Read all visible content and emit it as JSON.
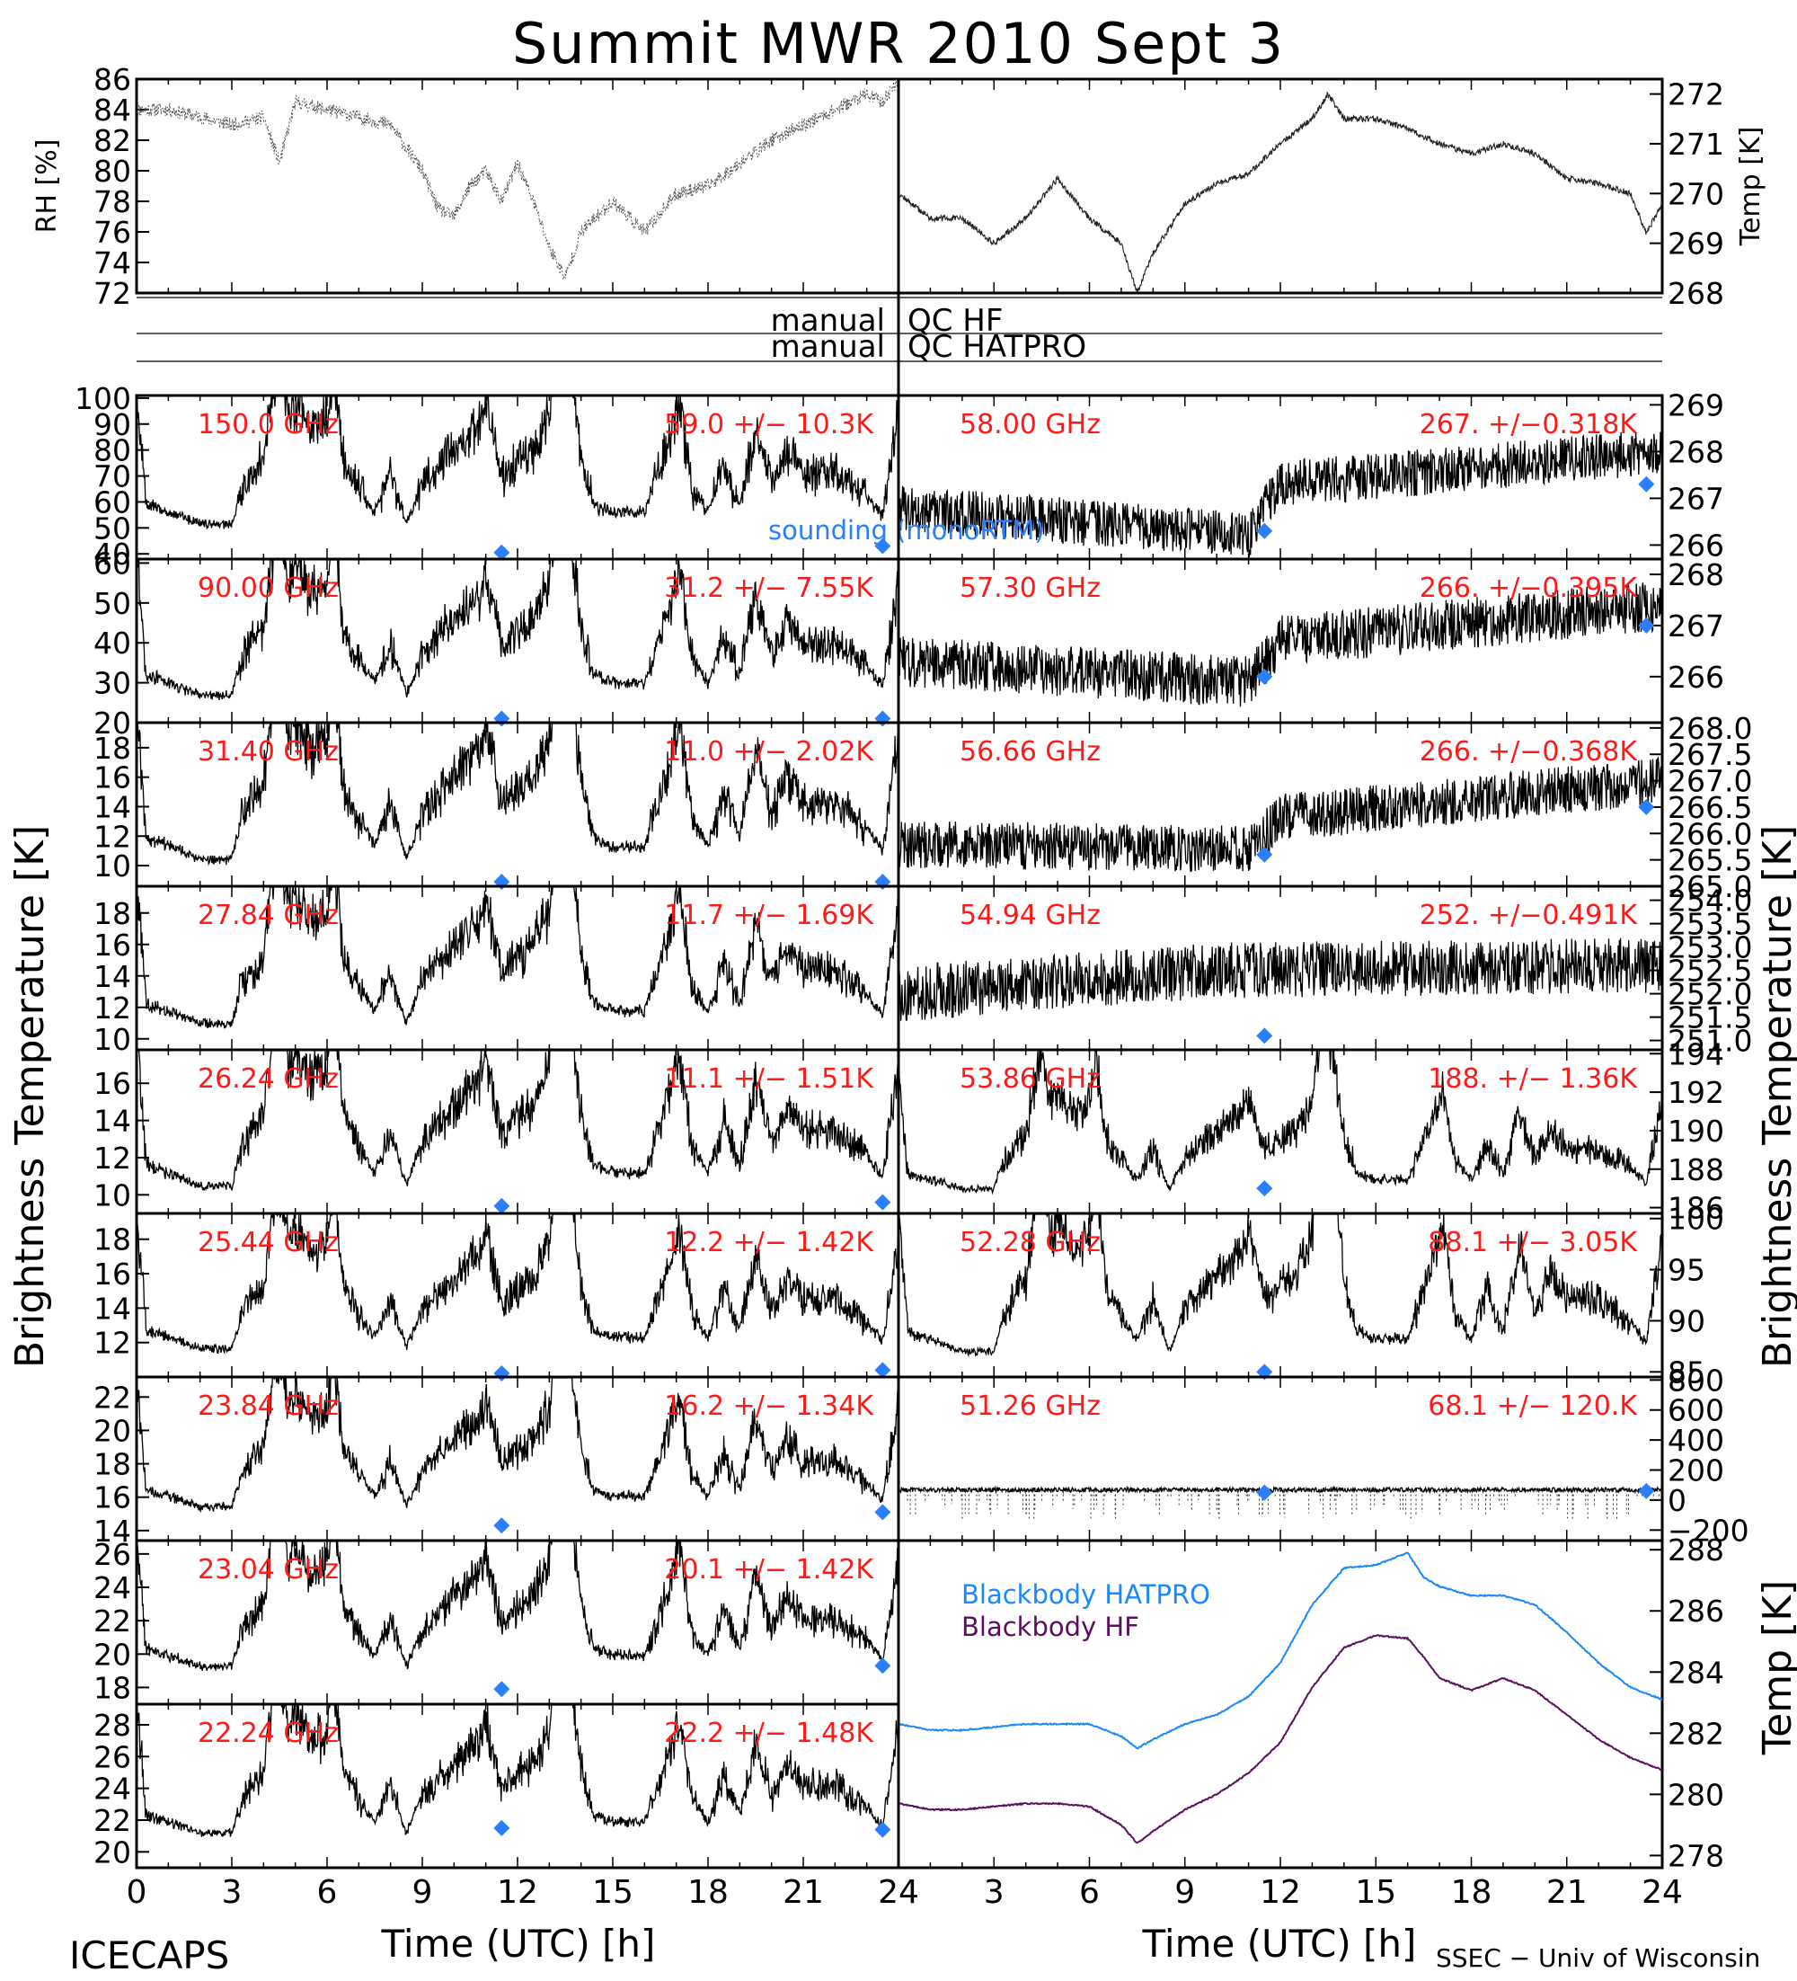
{
  "title": "Summit MWR 2010 Sept  3",
  "footer": {
    "left": "ICECAPS",
    "right": "SSEC − Univ of Wisconsin"
  },
  "xlabel": "Time (UTC) [h]",
  "x_ticks": [
    "0",
    "3",
    "6",
    "9",
    "12",
    "15",
    "18",
    "21",
    "24"
  ],
  "qc": [
    {
      "left": "manual",
      "right": "QC HF"
    },
    {
      "left": "manual",
      "right": "QC HATPRO"
    }
  ],
  "brightness_label": "Brightness Temperature [K]",
  "sounding_label": "sounding (monoRTM)",
  "colors": {
    "trace": "#000000",
    "annotation": "#ff1a1a",
    "sounding": "#2a7fff",
    "bb_hatpro": "#1a88ff",
    "bb_hf": "#5a0f5f"
  },
  "chart_data": [
    {
      "type": "scatter",
      "panel": "rh",
      "ylabel": "RH [%]",
      "ylim": [
        72,
        86
      ],
      "yticks": [
        "86",
        "84",
        "82",
        "80",
        "78",
        "76",
        "74",
        "72"
      ],
      "x": [
        0,
        1,
        2,
        3,
        4,
        4.5,
        5,
        6,
        7,
        8,
        9,
        9.5,
        10,
        10.5,
        11,
        11.5,
        12,
        12.5,
        13,
        13.5,
        14,
        14.5,
        15,
        16,
        17,
        18,
        19,
        20,
        21,
        22,
        23,
        23.5,
        24
      ],
      "y": [
        84,
        84,
        83.5,
        83,
        83.5,
        80.5,
        84.5,
        84,
        83.5,
        83,
        80,
        77.5,
        77,
        79,
        80,
        78,
        80.5,
        78,
        75,
        73,
        76,
        77,
        78,
        76,
        78.5,
        79,
        80.5,
        82,
        83,
        84,
        85,
        84.5,
        86
      ]
    },
    {
      "type": "line",
      "panel": "temp",
      "ylabel": "Temp [K]",
      "ylim": [
        268,
        272.3
      ],
      "yticks": [
        "272",
        "271",
        "270",
        "269",
        "268"
      ],
      "x": [
        0,
        1,
        2,
        3,
        4,
        5,
        6,
        7,
        7.5,
        8,
        9,
        10,
        11,
        12,
        13,
        13.5,
        14,
        15,
        16,
        17,
        18,
        19,
        20,
        21,
        22,
        23,
        23.5,
        24
      ],
      "y": [
        270,
        269.5,
        269.5,
        269,
        269.5,
        270.3,
        269.5,
        269,
        268,
        268.8,
        269.8,
        270.2,
        270.4,
        271,
        271.5,
        272,
        271.5,
        271.5,
        271.3,
        271,
        270.8,
        271,
        270.8,
        270.3,
        270.2,
        270,
        269.2,
        269.8
      ]
    },
    {
      "type": "line",
      "panel": "bt",
      "column": "left",
      "row": 0,
      "freq": "150.0 GHz",
      "stats": "59.0 +/−  10.3K",
      "ylim": [
        38,
        101
      ],
      "yticks": [
        "100",
        "90",
        "80",
        "70",
        "60",
        "50",
        "40"
      ],
      "sounding": [
        {
          "x": 11.5,
          "y": 40.5
        },
        {
          "x": 23.5,
          "y": 43
        }
      ],
      "scale": 15,
      "offset": 47,
      "noise": 4
    },
    {
      "type": "line",
      "panel": "bt",
      "column": "left",
      "row": 1,
      "freq": "90.00 GHz",
      "stats": "31.2 +/−  7.55K",
      "ylim": [
        20,
        61
      ],
      "yticks": [
        "60",
        "50",
        "40",
        "30",
        "20"
      ],
      "sounding": [
        {
          "x": 11.5,
          "y": 21
        },
        {
          "x": 23.5,
          "y": 21
        }
      ],
      "scale": 10,
      "offset": 24,
      "noise": 2.5
    },
    {
      "type": "line",
      "panel": "bt",
      "column": "left",
      "row": 2,
      "freq": "31.40 GHz",
      "stats": "11.0 +/− 2.02K",
      "ylim": [
        8.6,
        19.7
      ],
      "yticks": [
        "18",
        "16",
        "14",
        "12",
        "10"
      ],
      "sounding": [
        {
          "x": 11.5,
          "y": 8.9
        },
        {
          "x": 23.5,
          "y": 8.9
        }
      ],
      "scale": 3,
      "offset": 9.5,
      "noise": 0.7
    },
    {
      "type": "line",
      "panel": "bt",
      "column": "left",
      "row": 3,
      "freq": "27.84 GHz",
      "stats": "11.7 +/− 1.69K",
      "ylim": [
        9.3,
        19.7
      ],
      "yticks": [
        "18",
        "16",
        "14",
        "12",
        "10"
      ],
      "sounding": [],
      "scale": 2.6,
      "offset": 10.2,
      "noise": 0.6
    },
    {
      "type": "line",
      "panel": "bt",
      "column": "left",
      "row": 4,
      "freq": "26.24 GHz",
      "stats": "11.1 +/− 1.51K",
      "ylim": [
        9,
        17.8
      ],
      "yticks": [
        "16",
        "14",
        "12",
        "10"
      ],
      "sounding": [
        {
          "x": 11.5,
          "y": 9.4
        },
        {
          "x": 23.5,
          "y": 9.6
        }
      ],
      "scale": 2.3,
      "offset": 9.8,
      "noise": 0.5
    },
    {
      "type": "line",
      "panel": "bt",
      "column": "left",
      "row": 5,
      "freq": "25.44 GHz",
      "stats": "12.2 +/− 1.42K",
      "ylim": [
        10,
        19.5
      ],
      "yticks": [
        "18",
        "16",
        "14",
        "12"
      ],
      "sounding": [
        {
          "x": 11.5,
          "y": 10.1
        },
        {
          "x": 23.5,
          "y": 10.4
        }
      ],
      "scale": 2.2,
      "offset": 11,
      "noise": 0.5
    },
    {
      "type": "line",
      "panel": "bt",
      "column": "left",
      "row": 6,
      "freq": "23.84 GHz",
      "stats": "16.2 +/− 1.34K",
      "ylim": [
        13.4,
        23.2
      ],
      "yticks": [
        "22",
        "20",
        "18",
        "16",
        "14"
      ],
      "sounding": [
        {
          "x": 11.5,
          "y": 14.3
        },
        {
          "x": 23.5,
          "y": 15.1
        }
      ],
      "scale": 2.1,
      "offset": 14.8,
      "noise": 0.5
    },
    {
      "type": "line",
      "panel": "bt",
      "column": "left",
      "row": 7,
      "freq": "23.04 GHz",
      "stats": "20.1 +/− 1.42K",
      "ylim": [
        17,
        26.8
      ],
      "yticks": [
        "26",
        "24",
        "22",
        "20",
        "18"
      ],
      "sounding": [
        {
          "x": 11.5,
          "y": 17.9
        },
        {
          "x": 23.5,
          "y": 19.3
        }
      ],
      "scale": 2.2,
      "offset": 18.6,
      "noise": 0.5
    },
    {
      "type": "line",
      "panel": "bt",
      "column": "left",
      "row": 8,
      "freq": "22.24 GHz",
      "stats": "22.2 +/− 1.48K",
      "ylim": [
        19,
        29.3
      ],
      "yticks": [
        "28",
        "26",
        "24",
        "22",
        "20"
      ],
      "sounding": [
        {
          "x": 11.5,
          "y": 21.5
        },
        {
          "x": 23.5,
          "y": 21.4
        }
      ],
      "scale": 2.3,
      "offset": 20.5,
      "noise": 0.5
    },
    {
      "type": "line",
      "panel": "bt",
      "column": "right",
      "row": 0,
      "freq": "58.00 GHz",
      "stats": "267. +/−0.318K",
      "ylim": [
        265.7,
        269.2
      ],
      "yticks": [
        "269",
        "268",
        "267",
        "266"
      ],
      "sounding": [
        {
          "x": 11.5,
          "y": 266.3
        },
        {
          "x": 23.5,
          "y": 267.3
        }
      ],
      "trend": [
        [
          0,
          266.8
        ],
        [
          11,
          266.2
        ],
        [
          12,
          267.3
        ],
        [
          24,
          268
        ]
      ],
      "noise": 0.5
    },
    {
      "type": "line",
      "panel": "bt",
      "column": "right",
      "row": 1,
      "freq": "57.30 GHz",
      "stats": "266. +/−0.395K",
      "ylim": [
        265.1,
        268.3
      ],
      "yticks": [
        "268",
        "267",
        "266"
      ],
      "sounding": [
        {
          "x": 11.5,
          "y": 266
        },
        {
          "x": 23.5,
          "y": 267
        }
      ],
      "trend": [
        [
          0,
          266.3
        ],
        [
          11,
          265.9
        ],
        [
          12,
          266.7
        ],
        [
          24,
          267.4
        ]
      ],
      "noise": 0.5
    },
    {
      "type": "line",
      "panel": "bt",
      "column": "right",
      "row": 2,
      "freq": "56.66 GHz",
      "stats": "266. +/−0.368K",
      "ylim": [
        265,
        268.1
      ],
      "yticks": [
        "268.0",
        "267.5",
        "267.0",
        "266.5",
        "266.0",
        "265.5",
        "265.0"
      ],
      "sounding": [
        {
          "x": 11.5,
          "y": 265.6
        },
        {
          "x": 23.5,
          "y": 266.5
        }
      ],
      "trend": [
        [
          0,
          265.8
        ],
        [
          11,
          265.7
        ],
        [
          12,
          266.3
        ],
        [
          24,
          267
        ]
      ],
      "noise": 0.45
    },
    {
      "type": "line",
      "panel": "bt",
      "column": "right",
      "row": 3,
      "freq": "54.94 GHz",
      "stats": "252. +/−0.491K",
      "ylim": [
        250.8,
        254.3
      ],
      "yticks": [
        "254.0",
        "253.5",
        "253.0",
        "252.5",
        "252.0",
        "251.5",
        "251.0"
      ],
      "sounding": [
        {
          "x": 11.5,
          "y": 251.1
        }
      ],
      "trend": [
        [
          0,
          252
        ],
        [
          10,
          252.5
        ],
        [
          24,
          252.6
        ]
      ],
      "noise": 0.6
    },
    {
      "type": "line",
      "panel": "bt",
      "column": "right",
      "row": 4,
      "freq": "53.86 GHz",
      "stats": "188. +/− 1.36K",
      "ylim": [
        185.7,
        194.2
      ],
      "yticks": [
        "194",
        "192",
        "190",
        "188",
        "186"
      ],
      "sounding": [
        {
          "x": 11.5,
          "y": 187
        }
      ],
      "scale": 1.6,
      "offset": 186.5,
      "noise": 0.4
    },
    {
      "type": "line",
      "panel": "bt",
      "column": "right",
      "row": 5,
      "freq": "52.28 GHz",
      "stats": "88.1 +/− 3.05K",
      "ylim": [
        84.5,
        100.5
      ],
      "yticks": [
        "100",
        "95",
        "90",
        "85"
      ],
      "sounding": [
        {
          "x": 11.5,
          "y": 85
        }
      ],
      "scale": 4,
      "offset": 85.8,
      "noise": 0.8
    },
    {
      "type": "line",
      "panel": "bt",
      "column": "right",
      "row": 6,
      "freq": "51.26 GHz",
      "stats": "68.1 +/− 120.K",
      "ylim": [
        -270,
        820
      ],
      "yticks": [
        "800",
        "600",
        "400",
        "200",
        "0",
        "−200"
      ],
      "sounding": [
        {
          "x": 11.5,
          "y": 50
        },
        {
          "x": 23.5,
          "y": 60
        }
      ],
      "flat": 68,
      "noise": 15
    },
    {
      "type": "line",
      "panel": "blackbody",
      "ylabel": "Temp [K]",
      "ylim": [
        277.6,
        288.3
      ],
      "yticks": [
        "288",
        "286",
        "284",
        "282",
        "280",
        "278"
      ],
      "legend": "top-left",
      "series": [
        {
          "name": "Blackbody HATPRO",
          "x": [
            0,
            1,
            2,
            3,
            4,
            5,
            6,
            7,
            7.5,
            8,
            9,
            10,
            11,
            12,
            13,
            14,
            15,
            16,
            16.5,
            17,
            18,
            19,
            20,
            21,
            22,
            23,
            24
          ],
          "y": [
            282.3,
            282.1,
            282.1,
            282.2,
            282.3,
            282.3,
            282.3,
            281.9,
            281.5,
            281.8,
            282.3,
            282.6,
            283.2,
            284.3,
            286.2,
            287.4,
            287.5,
            287.9,
            287.1,
            286.8,
            286.5,
            286.5,
            286.2,
            285.3,
            284.3,
            283.5,
            283.1
          ]
        },
        {
          "name": "Blackbody HF",
          "x": [
            0,
            1,
            2,
            3,
            4,
            5,
            6,
            7,
            7.5,
            8,
            9,
            10,
            11,
            12,
            13,
            14,
            15,
            16,
            16.5,
            17,
            18,
            19,
            20,
            21,
            22,
            23,
            24
          ],
          "y": [
            279.7,
            279.5,
            279.5,
            279.6,
            279.7,
            279.7,
            279.6,
            279,
            278.4,
            278.8,
            279.5,
            280,
            280.7,
            281.7,
            283.5,
            284.8,
            285.2,
            285.1,
            284.5,
            283.8,
            283.4,
            283.8,
            283.4,
            282.6,
            281.8,
            281.2,
            280.8
          ]
        }
      ]
    }
  ]
}
